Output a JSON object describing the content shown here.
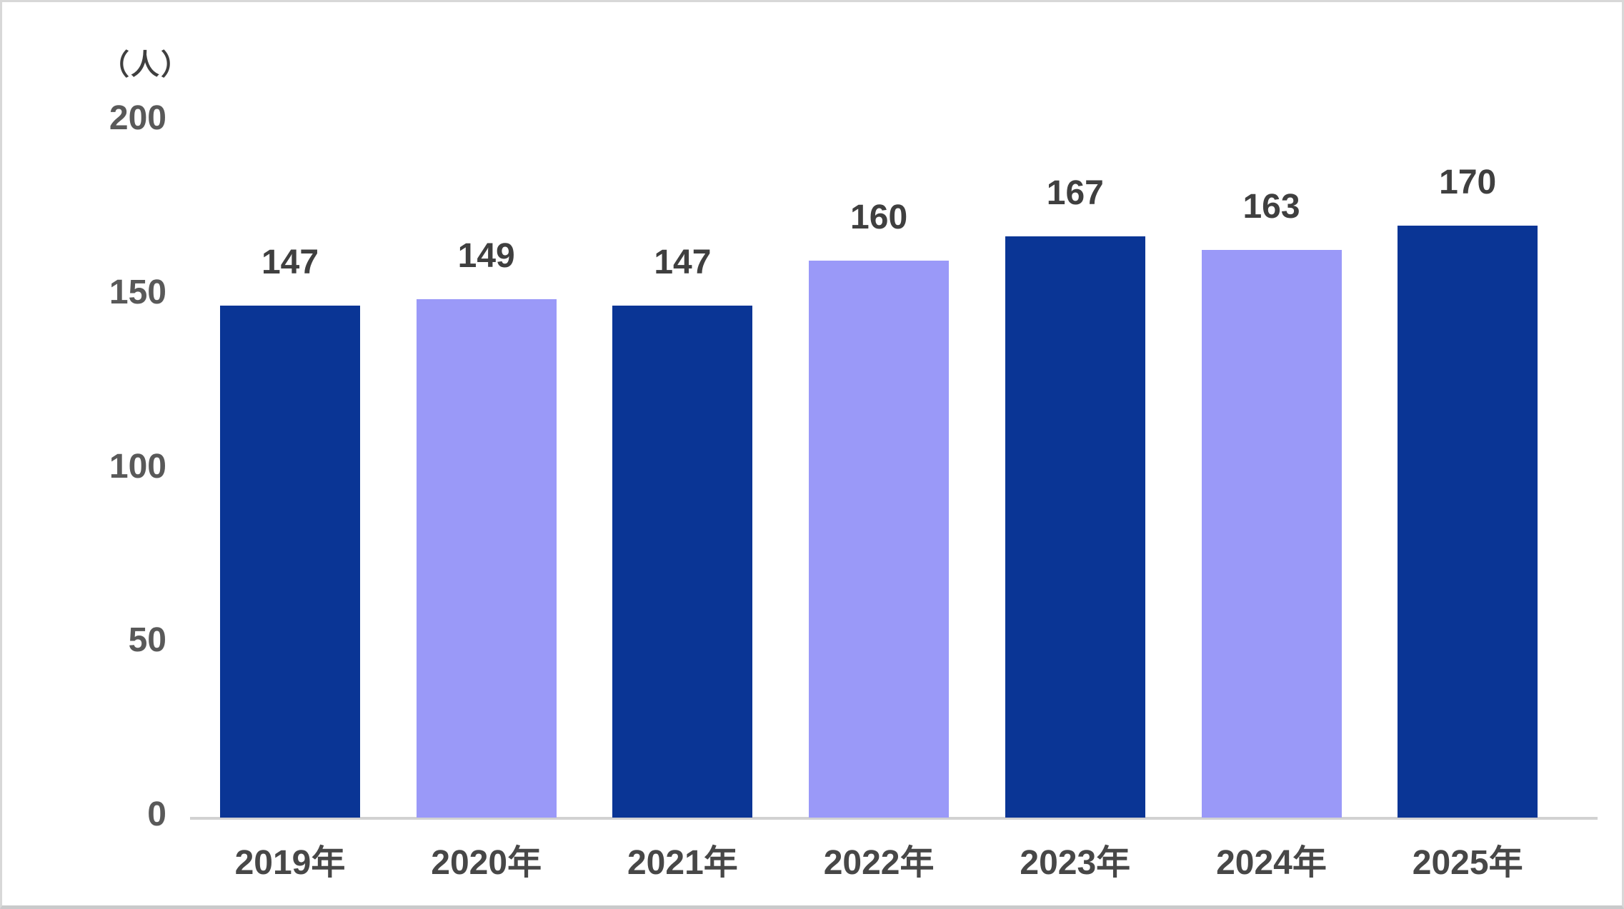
{
  "chart_data": {
    "type": "bar",
    "title": "",
    "ylabel": "（人）",
    "xlabel": "",
    "categories": [
      "2019年",
      "2020年",
      "2021年",
      "2022年",
      "2023年",
      "2024年",
      "2025年"
    ],
    "values": [
      147,
      149,
      147,
      160,
      167,
      163,
      170
    ],
    "value_labels": [
      "147",
      "149",
      "147",
      "160",
      "167",
      "163",
      "170"
    ],
    "y_ticks": [
      200,
      150,
      100,
      50,
      0
    ],
    "y_tick_labels": [
      "200",
      "150",
      "100",
      "50",
      "0"
    ],
    "ylim": [
      0,
      200
    ],
    "grid": false,
    "legend": "none",
    "bar_color_pattern": [
      "dark",
      "light",
      "dark",
      "light",
      "dark",
      "light",
      "dark"
    ],
    "colors": {
      "bar_dark": "#0a3595",
      "bar_light": "#9a99f8",
      "value_label": "#3f3f3f",
      "tick_label": "#595959",
      "category_label": "#474747",
      "axis_line": "#d2d2d2",
      "background": "#ffffff",
      "frame_border": "#d8d8d8"
    }
  }
}
